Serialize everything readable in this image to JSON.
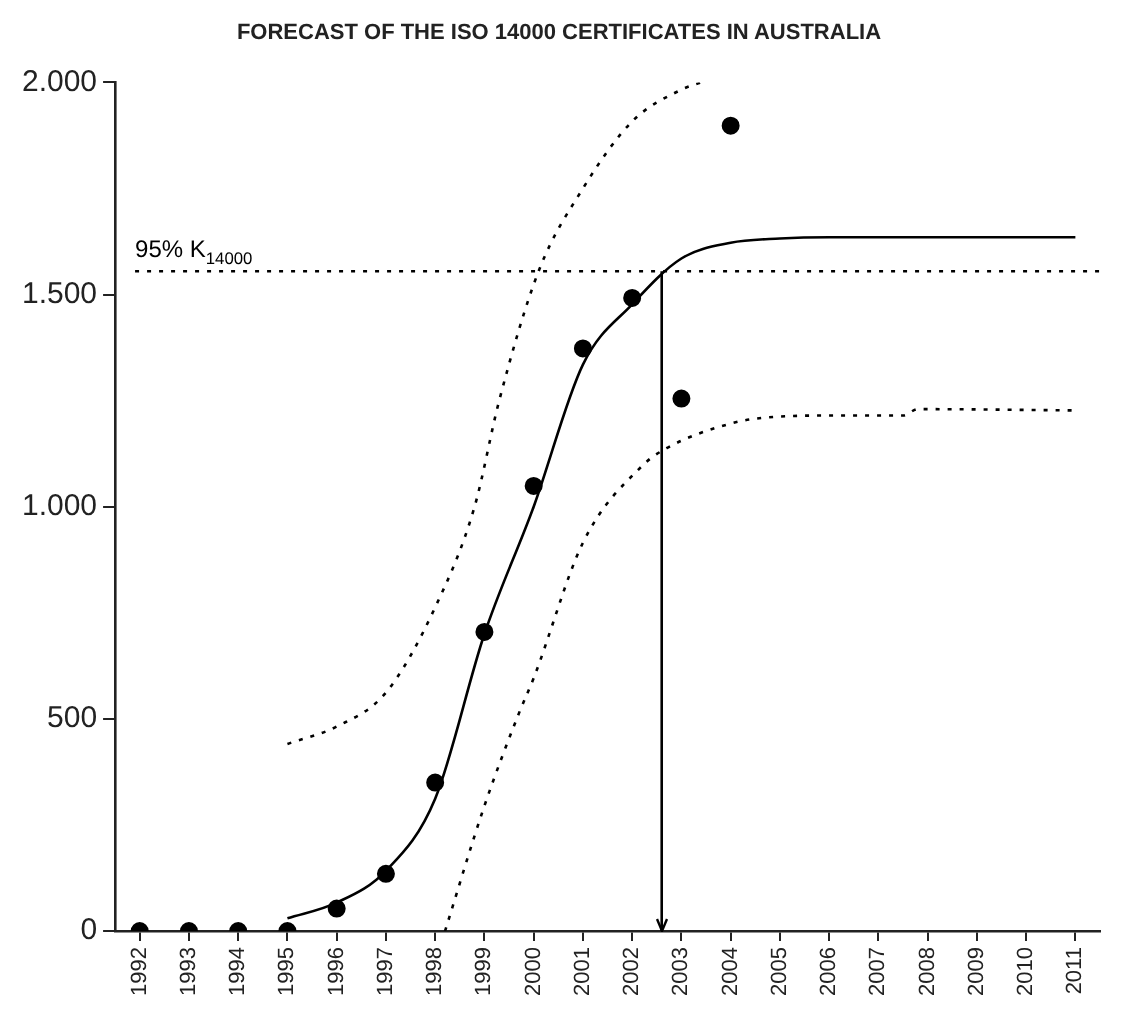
{
  "chart_data": {
    "type": "scatter",
    "title": "FORECAST OF THE ISO 14000 CERTIFICATES IN AUSTRALIA",
    "xlim": [
      1991.5,
      2011.5
    ],
    "xticks": [
      1992,
      1993,
      1994,
      1995,
      1996,
      1997,
      1998,
      1999,
      2000,
      2001,
      2002,
      2003,
      2004,
      2005,
      2006,
      2007,
      2008,
      2009,
      2010,
      2011
    ],
    "ylim": [
      0,
      2000
    ],
    "yticks": [
      0,
      500,
      {
        "value": 1000,
        "label": "1.000"
      },
      {
        "value": 1500,
        "label": "1.500"
      },
      {
        "value": 2000,
        "label": "2.000"
      }
    ],
    "grid": false,
    "legend": false,
    "series": [
      {
        "type": "scatter",
        "color": "#000000",
        "marker": "circle",
        "x": [
          1992,
          1993,
          1994,
          1995,
          1996,
          1997,
          1998,
          1999,
          2000,
          2001,
          2002,
          2003,
          2004
        ],
        "values": [
          0,
          0,
          0,
          0,
          53,
          135,
          350,
          705,
          1049,
          1373,
          1492,
          1255,
          1898
        ]
      },
      {
        "type": "line",
        "color": "#000000",
        "line_style": "solid",
        "marker": "none",
        "x": [
          1995,
          1996,
          1997,
          1998,
          1999,
          2000,
          2001,
          2002,
          2003,
          2004,
          2005,
          2006,
          2011
        ],
        "values": [
          30,
          67,
          142,
          312,
          700,
          1000,
          1335,
          1477,
          1585,
          1622,
          1632,
          1635,
          1635
        ]
      },
      {
        "type": "line",
        "color": "#000000",
        "line_style": "dotted",
        "marker": "none",
        "x": [
          1995,
          1996,
          1997,
          1998,
          1998.8,
          1999.3,
          2000.1,
          2001,
          2002,
          2003,
          2003.4
        ],
        "values": [
          441,
          482,
          562,
          763,
          1000,
          1250,
          1555,
          1750,
          1908,
          1983,
          2000
        ]
      },
      {
        "type": "line",
        "color": "#000000",
        "line_style": "dotted",
        "marker": "none",
        "x": [
          1998.2,
          1999,
          1999.7,
          2000,
          2001,
          2002.2,
          2002.7,
          2004,
          2004.7,
          2006.1,
          2007.5,
          2007.8,
          2011
        ],
        "values": [
          0,
          295,
          513,
          596,
          915,
          1096,
          1138,
          1196,
          1210,
          1215,
          1215,
          1230,
          1227
        ]
      }
    ],
    "ref_lines": [
      {
        "axis": "y",
        "value": 1555,
        "label": "95% K$_{14000}$",
        "line_style": "dotted",
        "color": "#000000"
      },
      {
        "axis": "x",
        "value": 2002.6,
        "line_style": "solid",
        "color": "#000000"
      }
    ]
  }
}
